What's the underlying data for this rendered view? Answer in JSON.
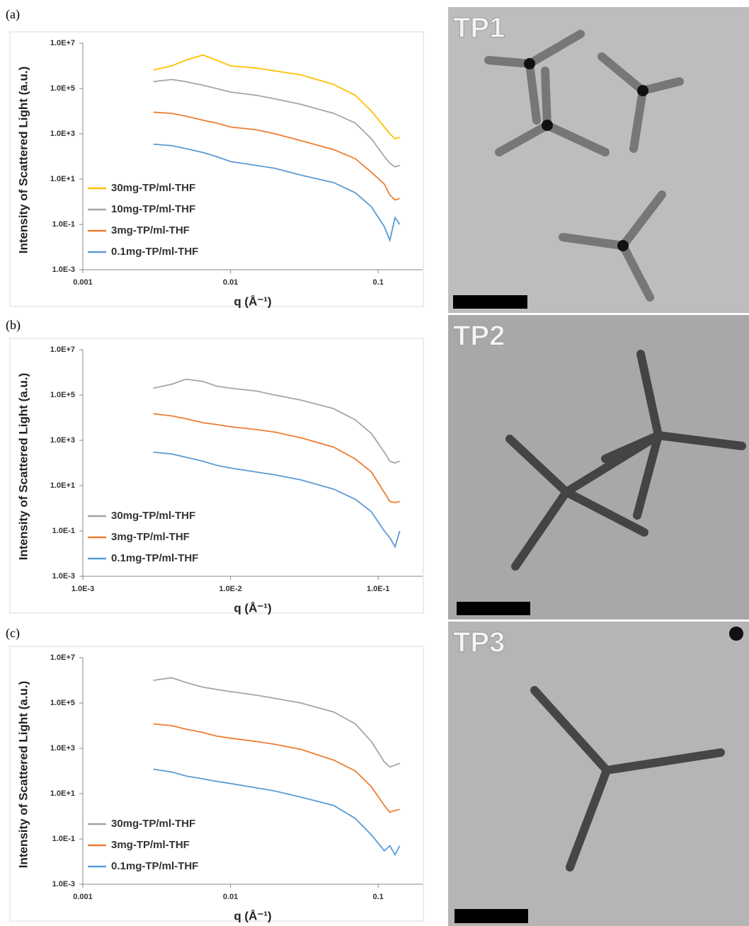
{
  "panels": [
    {
      "label": "(a)",
      "image_label": "TP1"
    },
    {
      "label": "(b)",
      "image_label": "TP2"
    },
    {
      "label": "(c)",
      "image_label": "TP3"
    }
  ],
  "chart_data": [
    {
      "type": "line",
      "x_label": "q (Å⁻¹)",
      "y_label": "Intensity of Scattered Light (a.u.)",
      "log_x": true,
      "log_y": true,
      "legend": "lower left",
      "xlim": [
        0.001,
        0.2
      ],
      "ylim": [
        0.001,
        10000000
      ],
      "xticks": [
        0.001,
        0.01,
        0.1
      ],
      "yticks": [
        {
          "value": 10000000,
          "label": "1.0E+7"
        },
        {
          "value": 100000,
          "label": "1.0E+5"
        },
        {
          "value": 1000,
          "label": "1.0E+3"
        },
        {
          "value": 10,
          "label": "1.0E+1"
        },
        {
          "value": 0.1,
          "label": "1.0E-1"
        },
        {
          "value": 0.001,
          "label": "1.0E-3"
        }
      ],
      "x": [
        0.003,
        0.004,
        0.005,
        0.0065,
        0.008,
        0.01,
        0.015,
        0.02,
        0.03,
        0.05,
        0.07,
        0.09,
        0.11,
        0.12,
        0.13,
        0.14
      ],
      "series": [
        {
          "name": "30mg-TP/ml-THF",
          "color": "#ffc000",
          "values": [
            650000,
            1000000,
            1800000,
            3000000,
            1800000,
            1000000,
            800000,
            600000,
            400000,
            150000,
            50000,
            10000,
            2000,
            1000,
            600,
            700
          ]
        },
        {
          "name": "10mg-TP/ml-THF",
          "color": "#a5a5a5",
          "values": [
            200000,
            250000,
            200000,
            140000,
            100000,
            70000,
            50000,
            35000,
            20000,
            8000,
            3000,
            600,
            100,
            50,
            35,
            40
          ]
        },
        {
          "name": "3mg-TP/ml-THF",
          "color": "#ed7d31",
          "values": [
            9000,
            8000,
            6000,
            4000,
            3000,
            2000,
            1500,
            1000,
            500,
            200,
            80,
            20,
            6,
            2,
            1.2,
            1.4
          ]
        },
        {
          "name": "0.1mg-TP/ml-THF",
          "color": "#5b9bd5",
          "values": [
            350,
            300,
            220,
            150,
            100,
            60,
            40,
            30,
            15,
            7,
            2.5,
            0.6,
            0.08,
            0.02,
            0.2,
            0.1
          ]
        }
      ]
    },
    {
      "type": "line",
      "x_label": "q (Å⁻¹)",
      "y_label": "Intensity of Scattered Light (a.u.)",
      "log_x": true,
      "log_y": true,
      "legend": "lower left",
      "xlim": [
        0.001,
        0.2
      ],
      "ylim": [
        0.001,
        10000000
      ],
      "xticks": [
        {
          "value": 0.001,
          "label": "1.0E-3"
        },
        {
          "value": 0.01,
          "label": "1.0E-2"
        },
        {
          "value": 0.1,
          "label": "1.0E-1"
        }
      ],
      "yticks": [
        {
          "value": 10000000,
          "label": "1.0E+7"
        },
        {
          "value": 100000,
          "label": "1.0E+5"
        },
        {
          "value": 1000,
          "label": "1.0E+3"
        },
        {
          "value": 10,
          "label": "1.0E+1"
        },
        {
          "value": 0.1,
          "label": "1.0E-1"
        },
        {
          "value": 0.001,
          "label": "1.0E-3"
        }
      ],
      "x": [
        0.003,
        0.004,
        0.005,
        0.0065,
        0.008,
        0.01,
        0.015,
        0.02,
        0.03,
        0.05,
        0.07,
        0.09,
        0.11,
        0.12,
        0.13,
        0.14
      ],
      "series": [
        {
          "name": "30mg-TP/ml-THF",
          "color": "#a5a5a5",
          "values": [
            200000,
            300000,
            500000,
            400000,
            250000,
            200000,
            150000,
            100000,
            60000,
            25000,
            8000,
            2000,
            300,
            120,
            100,
            120
          ]
        },
        {
          "name": "3mg-TP/ml-THF",
          "color": "#ed7d31",
          "values": [
            15000,
            12000,
            9000,
            6000,
            5000,
            4000,
            3000,
            2300,
            1300,
            500,
            150,
            40,
            5,
            2,
            1.8,
            2
          ]
        },
        {
          "name": "0.1mg-TP/ml-THF",
          "color": "#5b9bd5",
          "values": [
            300,
            250,
            180,
            120,
            80,
            60,
            40,
            30,
            18,
            7,
            2.5,
            0.7,
            0.1,
            0.05,
            0.02,
            0.1
          ]
        }
      ]
    },
    {
      "type": "line",
      "x_label": "q (Å⁻¹)",
      "y_label": "Intensity of Scattered Light (a.u.)",
      "log_x": true,
      "log_y": true,
      "legend": "lower left",
      "xlim": [
        0.001,
        0.2
      ],
      "ylim": [
        0.001,
        10000000
      ],
      "xticks": [
        0.001,
        0.01,
        0.1
      ],
      "yticks": [
        {
          "value": 10000000,
          "label": "1.0E+7"
        },
        {
          "value": 100000,
          "label": "1.0E+5"
        },
        {
          "value": 1000,
          "label": "1.0E+3"
        },
        {
          "value": 10,
          "label": "1.0E+1"
        },
        {
          "value": 0.1,
          "label": "1.0E-1"
        },
        {
          "value": 0.001,
          "label": "1.0E-3"
        }
      ],
      "x": [
        0.003,
        0.004,
        0.005,
        0.0065,
        0.008,
        0.01,
        0.015,
        0.02,
        0.03,
        0.05,
        0.07,
        0.09,
        0.11,
        0.12,
        0.13,
        0.14
      ],
      "series": [
        {
          "name": "30mg-TP/ml-THF",
          "color": "#a5a5a5",
          "values": [
            1000000,
            1300000,
            800000,
            500000,
            400000,
            320000,
            220000,
            160000,
            100000,
            40000,
            12000,
            2000,
            250,
            150,
            180,
            220
          ]
        },
        {
          "name": "3mg-TP/ml-THF",
          "color": "#ed7d31",
          "values": [
            12000,
            10000,
            7000,
            5000,
            3500,
            2800,
            2000,
            1500,
            900,
            300,
            100,
            20,
            3,
            1.5,
            1.8,
            2
          ]
        },
        {
          "name": "0.1mg-TP/ml-THF",
          "color": "#5b9bd5",
          "values": [
            120,
            90,
            60,
            45,
            35,
            28,
            18,
            13,
            7,
            3,
            0.8,
            0.15,
            0.03,
            0.05,
            0.02,
            0.05
          ]
        }
      ]
    }
  ]
}
